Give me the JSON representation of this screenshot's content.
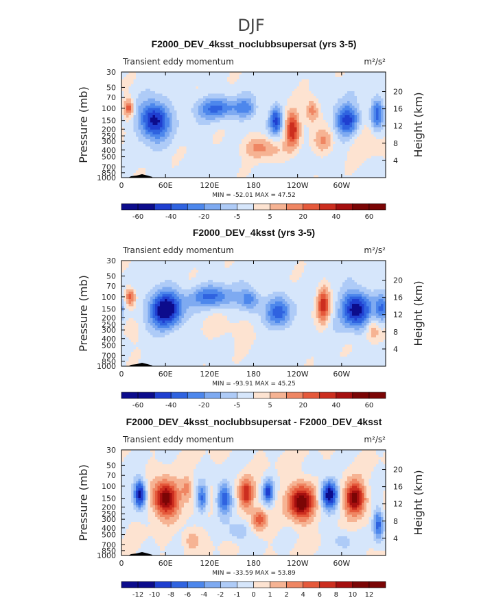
{
  "page_title": "DJF",
  "colors": {
    "cool": [
      "#0c0c8c",
      "#1f3fd0",
      "#2f63e0",
      "#4d87ec",
      "#7eaaf1",
      "#aecbf7",
      "#d6e6fb"
    ],
    "warm": [
      "#fde3d1",
      "#f6b393",
      "#ef8663",
      "#e5593b",
      "#cc2e1f",
      "#a50f0f",
      "#7b0505"
    ],
    "topo": "#000000"
  },
  "chart_data": [
    {
      "type": "heatmap",
      "title": "F2000_DEV_4ksst_noclubbsupersat (yrs 3-5)",
      "left_label": "Transient eddy momentum",
      "units": "m²/s²",
      "ylabel": "Pressure (mb)",
      "y2label": "Height (km)",
      "x_ticks": [
        "0",
        "60E",
        "120E",
        "180",
        "120W",
        "60W"
      ],
      "y_ticks": [
        "30",
        "50",
        "70",
        "100",
        "150",
        "200",
        "250",
        "300",
        "400",
        "500",
        "700",
        "850",
        "1000"
      ],
      "height_ticks": [
        "20",
        "16",
        "12",
        "8",
        "4"
      ],
      "stats": "MIN = -52.01   MAX = 47.52",
      "colorbar_labels": [
        "-60",
        "-40",
        "-20",
        "-5",
        "5",
        "20",
        "40",
        "60"
      ],
      "features": [
        {
          "lon": 45,
          "p": 150,
          "amp": -7.0,
          "wlon": 14,
          "wz": 0.9
        },
        {
          "lon": 10,
          "p": 100,
          "amp": 4.5,
          "wlon": 5,
          "wz": 0.45
        },
        {
          "lon": 130,
          "p": 100,
          "amp": -4.0,
          "wlon": 20,
          "wz": 0.55
        },
        {
          "lon": 170,
          "p": 100,
          "amp": -3.0,
          "wlon": 10,
          "wz": 0.5
        },
        {
          "lon": 210,
          "p": 150,
          "amp": -5.0,
          "wlon": 6,
          "wz": 0.7
        },
        {
          "lon": 233,
          "p": 200,
          "amp": 5.5,
          "wlon": 7,
          "wz": 0.9
        },
        {
          "lon": 260,
          "p": 110,
          "amp": 3.5,
          "wlon": 7,
          "wz": 0.6
        },
        {
          "lon": 308,
          "p": 150,
          "amp": -6.0,
          "wlon": 12,
          "wz": 0.8
        },
        {
          "lon": 348,
          "p": 120,
          "amp": -4.5,
          "wlon": 6,
          "wz": 0.8
        },
        {
          "lon": 190,
          "p": 370,
          "amp": 3.0,
          "wlon": 18,
          "wz": 0.55
        },
        {
          "lon": 275,
          "p": 300,
          "amp": 2.5,
          "wlon": 10,
          "wz": 0.6
        },
        {
          "lon": 330,
          "p": 250,
          "amp": 1.5,
          "wlon": 20,
          "wz": 1.0
        }
      ],
      "base": -0.4
    },
    {
      "type": "heatmap",
      "title": "F2000_DEV_4ksst (yrs 3-5)",
      "left_label": "Transient eddy momentum",
      "units": "m²/s²",
      "ylabel": "Pressure (mb)",
      "y2label": "Height (km)",
      "x_ticks": [
        "0",
        "60E",
        "120E",
        "180",
        "120W",
        "60W"
      ],
      "y_ticks": [
        "30",
        "50",
        "70",
        "100",
        "150",
        "200",
        "250",
        "300",
        "400",
        "500",
        "700",
        "850",
        "1000"
      ],
      "height_ticks": [
        "20",
        "16",
        "12",
        "8",
        "4"
      ],
      "stats": "MIN = -93.91   MAX = 45.25",
      "colorbar_labels": [
        "-60",
        "-40",
        "-20",
        "-5",
        "5",
        "20",
        "40",
        "60"
      ],
      "features": [
        {
          "lon": 60,
          "p": 150,
          "amp": -7.5,
          "wlon": 16,
          "wz": 0.9
        },
        {
          "lon": 12,
          "p": 100,
          "amp": 4.5,
          "wlon": 5,
          "wz": 0.45
        },
        {
          "lon": 125,
          "p": 100,
          "amp": -4.0,
          "wlon": 22,
          "wz": 0.55
        },
        {
          "lon": 175,
          "p": 110,
          "amp": -3.5,
          "wlon": 10,
          "wz": 0.55
        },
        {
          "lon": 215,
          "p": 170,
          "amp": -4.5,
          "wlon": 12,
          "wz": 0.75
        },
        {
          "lon": 275,
          "p": 130,
          "amp": 5.0,
          "wlon": 6,
          "wz": 0.9
        },
        {
          "lon": 320,
          "p": 150,
          "amp": -7.0,
          "wlon": 14,
          "wz": 0.9
        },
        {
          "lon": 355,
          "p": 150,
          "amp": -3.5,
          "wlon": 6,
          "wz": 0.7
        },
        {
          "lon": 12,
          "p": 300,
          "amp": 1.5,
          "wlon": 8,
          "wz": 0.6
        },
        {
          "lon": 343,
          "p": 300,
          "amp": 2.5,
          "wlon": 6,
          "wz": 0.6
        },
        {
          "lon": 150,
          "p": 300,
          "amp": 1.0,
          "wlon": 25,
          "wz": 0.7
        }
      ],
      "base": -0.4
    },
    {
      "type": "heatmap",
      "title": "F2000_DEV_4ksst_noclubbsupersat - F2000_DEV_4ksst",
      "left_label": "Transient eddy momentum",
      "units": "m²/s²",
      "ylabel": "Pressure (mb)",
      "y2label": "Height (km)",
      "x_ticks": [
        "0",
        "60E",
        "120E",
        "180",
        "120W",
        "60W"
      ],
      "y_ticks": [
        "30",
        "50",
        "70",
        "100",
        "150",
        "200",
        "250",
        "300",
        "400",
        "500",
        "700",
        "850",
        "1000"
      ],
      "height_ticks": [
        "20",
        "16",
        "12",
        "8",
        "4"
      ],
      "stats": "MIN = -33.59   MAX = 53.89",
      "colorbar_labels": [
        "-12",
        "-10",
        "-8",
        "-6",
        "-4",
        "-2",
        "-1",
        "0",
        "1",
        "2",
        "4",
        "6",
        "8",
        "10",
        "12"
      ],
      "features": [
        {
          "lon": 25,
          "p": 130,
          "amp": -7.5,
          "wlon": 6,
          "wz": 0.7
        },
        {
          "lon": 60,
          "p": 150,
          "amp": 7.5,
          "wlon": 12,
          "wz": 0.85
        },
        {
          "lon": 110,
          "p": 150,
          "amp": -4.5,
          "wlon": 5,
          "wz": 0.7
        },
        {
          "lon": 140,
          "p": 150,
          "amp": -5.0,
          "wlon": 7,
          "wz": 0.8
        },
        {
          "lon": 170,
          "p": 130,
          "amp": 5.0,
          "wlon": 7,
          "wz": 0.75
        },
        {
          "lon": 200,
          "p": 120,
          "amp": -5.5,
          "wlon": 5,
          "wz": 0.6
        },
        {
          "lon": 188,
          "p": 300,
          "amp": 4.0,
          "wlon": 7,
          "wz": 0.55
        },
        {
          "lon": 245,
          "p": 170,
          "amp": 7.5,
          "wlon": 12,
          "wz": 0.9
        },
        {
          "lon": 283,
          "p": 130,
          "amp": -7.5,
          "wlon": 8,
          "wz": 0.7
        },
        {
          "lon": 318,
          "p": 150,
          "amp": 7.0,
          "wlon": 10,
          "wz": 0.8
        },
        {
          "lon": 350,
          "p": 350,
          "amp": -5.0,
          "wlon": 5,
          "wz": 0.8
        },
        {
          "lon": 90,
          "p": 110,
          "amp": 2.5,
          "wlon": 6,
          "wz": 0.6
        },
        {
          "lon": 160,
          "p": 450,
          "amp": -2.5,
          "wlon": 10,
          "wz": 0.5
        },
        {
          "lon": 95,
          "p": 600,
          "amp": 2.0,
          "wlon": 8,
          "wz": 0.5
        },
        {
          "lon": 300,
          "p": 600,
          "amp": -2.0,
          "wlon": 10,
          "wz": 0.5
        }
      ],
      "base": 0.0
    }
  ]
}
